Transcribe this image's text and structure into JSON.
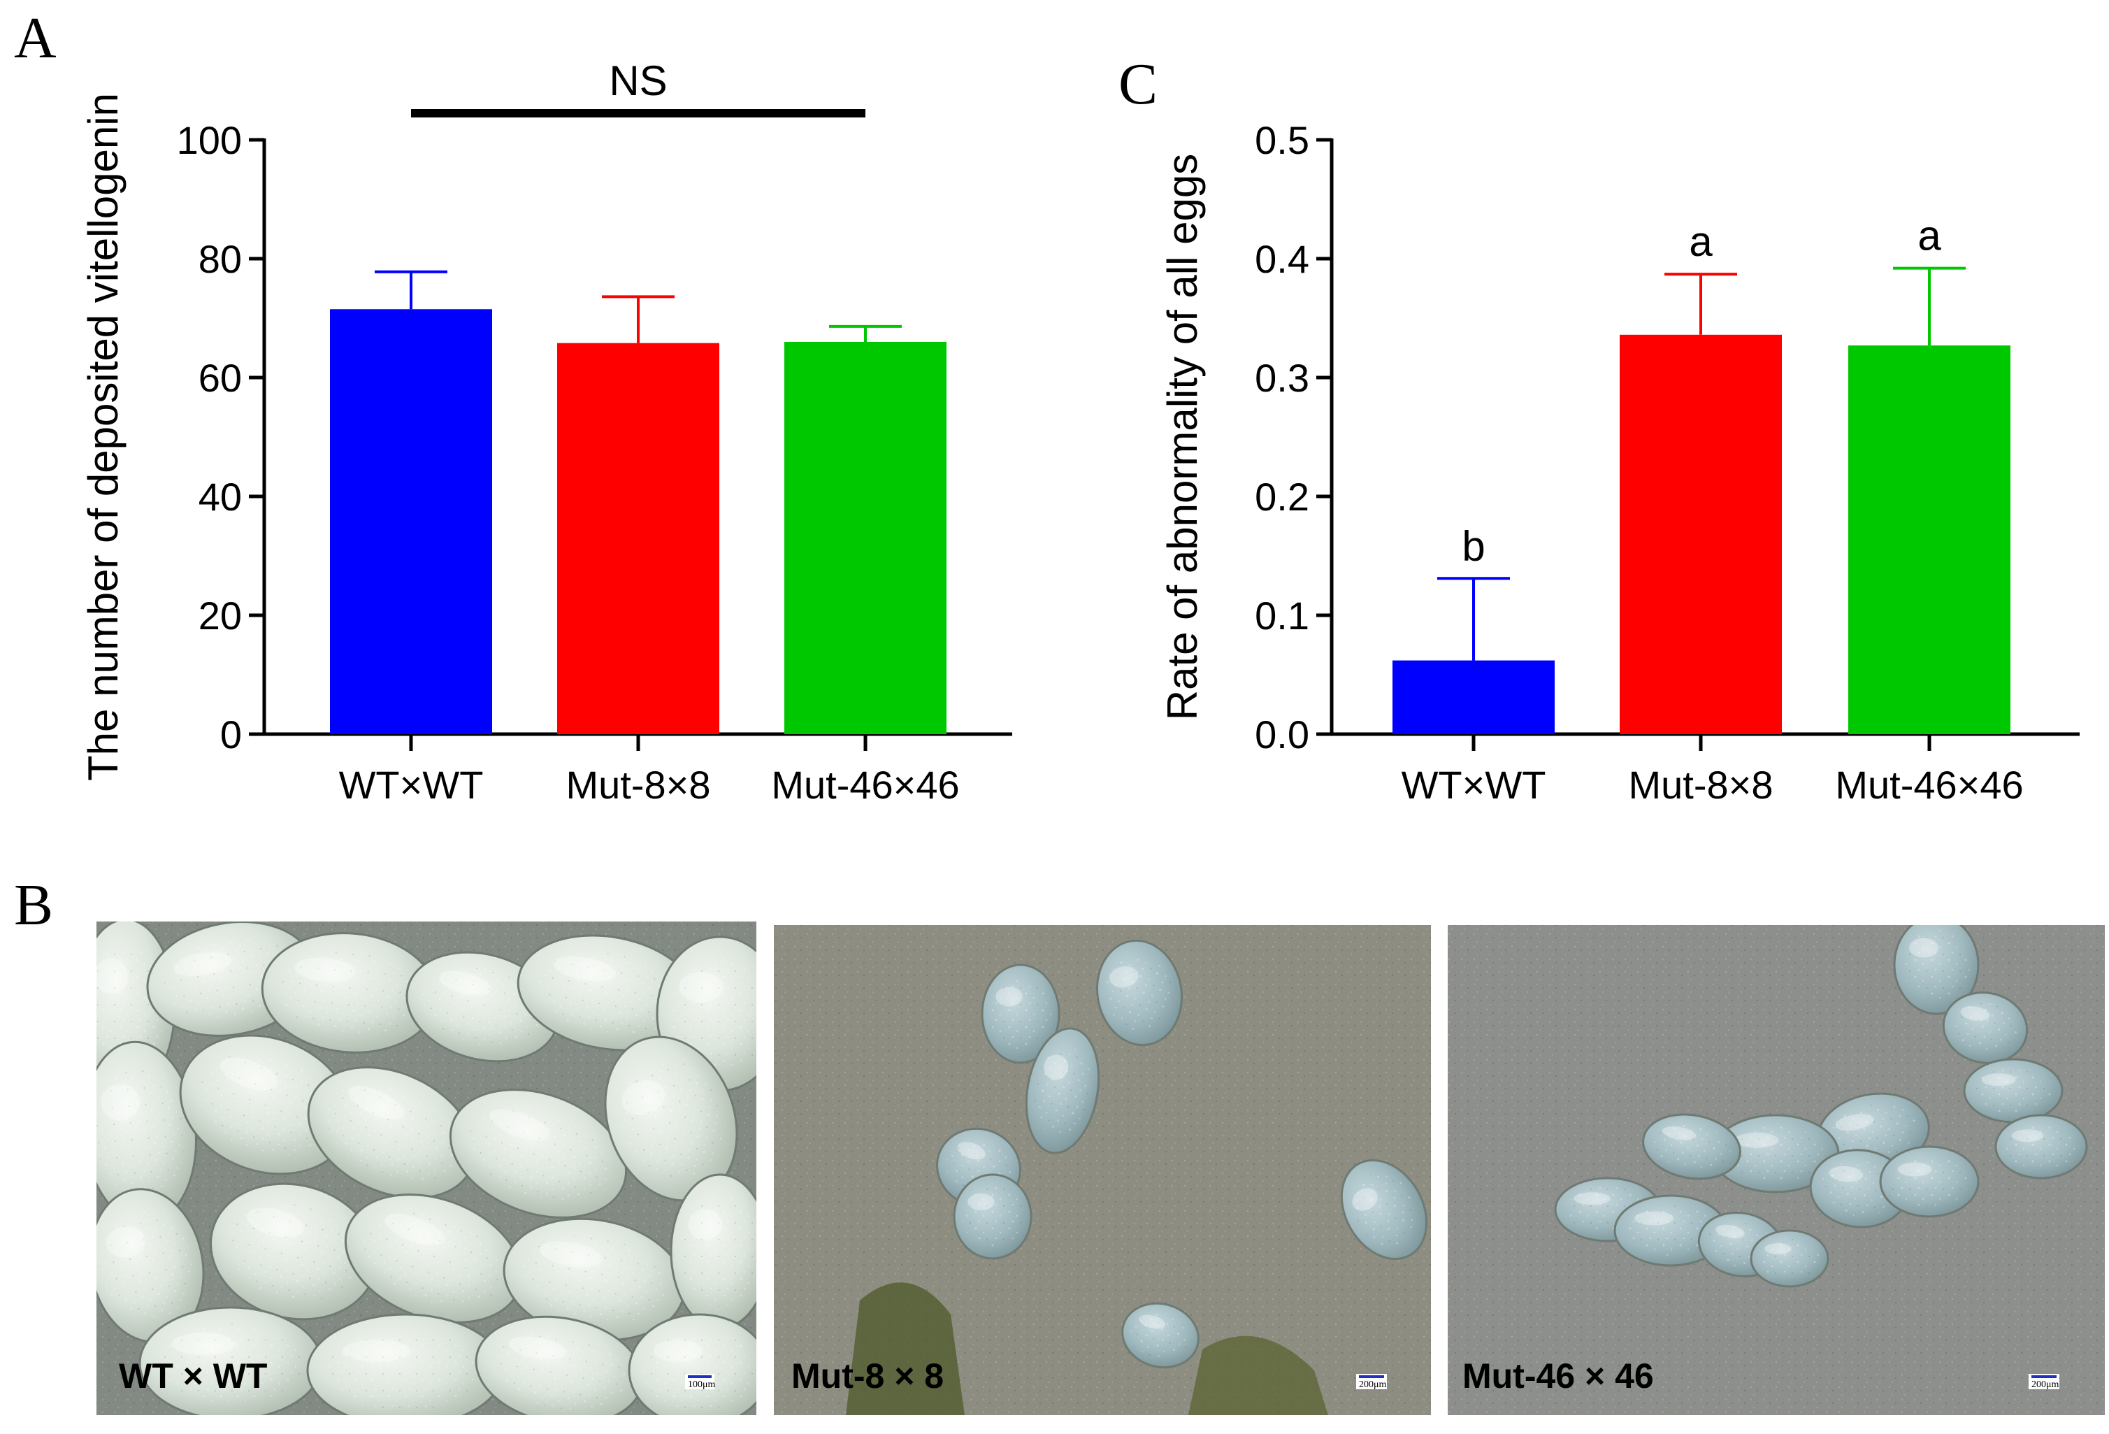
{
  "colors": {
    "blue": "#0000ff",
    "red": "#ff0000",
    "green": "#00c800"
  },
  "panels": {
    "A": {
      "letter": "A"
    },
    "B": {
      "letter": "B"
    },
    "C": {
      "letter": "C"
    }
  },
  "chart_data": [
    {
      "id": "A",
      "type": "bar",
      "categories": [
        "WT×WT",
        "Mut-8×8",
        "Mut-46×46"
      ],
      "values": [
        71.5,
        65.8,
        66.0
      ],
      "errors": [
        6.3,
        7.8,
        2.6
      ],
      "colors": [
        "#0000ff",
        "#ff0000",
        "#00c800"
      ],
      "ylabel": "The number of deposited vitellogenin",
      "ylim": [
        0,
        100
      ],
      "yticks": [
        0,
        20,
        40,
        60,
        80,
        100
      ],
      "ytick_labels": [
        "0",
        "20",
        "40",
        "60",
        "80",
        "100"
      ],
      "significance": {
        "label": "NS",
        "from": 0,
        "to": 2
      }
    },
    {
      "id": "C",
      "type": "bar",
      "categories": [
        "WT×WT",
        "Mut-8×8",
        "Mut-46×46"
      ],
      "values": [
        0.062,
        0.336,
        0.327
      ],
      "errors": [
        0.069,
        0.051,
        0.065
      ],
      "colors": [
        "#0000ff",
        "#ff0000",
        "#00c800"
      ],
      "ylabel": "Rate of abnormality of all eggs",
      "ylim": [
        0,
        0.5
      ],
      "yticks": [
        0,
        0.1,
        0.2,
        0.3,
        0.4,
        0.5
      ],
      "ytick_labels": [
        "0.0",
        "0.1",
        "0.2",
        "0.3",
        "0.4",
        "0.5"
      ],
      "letters": [
        "b",
        "a",
        "a"
      ]
    }
  ],
  "photos": [
    {
      "caption": "WT × WT",
      "scale": "100μm",
      "theme": "wt"
    },
    {
      "caption": "Mut-8 × 8",
      "scale": "200μm",
      "theme": "mut8"
    },
    {
      "caption": "Mut-46 × 46",
      "scale": "200μm",
      "theme": "mut46"
    }
  ]
}
